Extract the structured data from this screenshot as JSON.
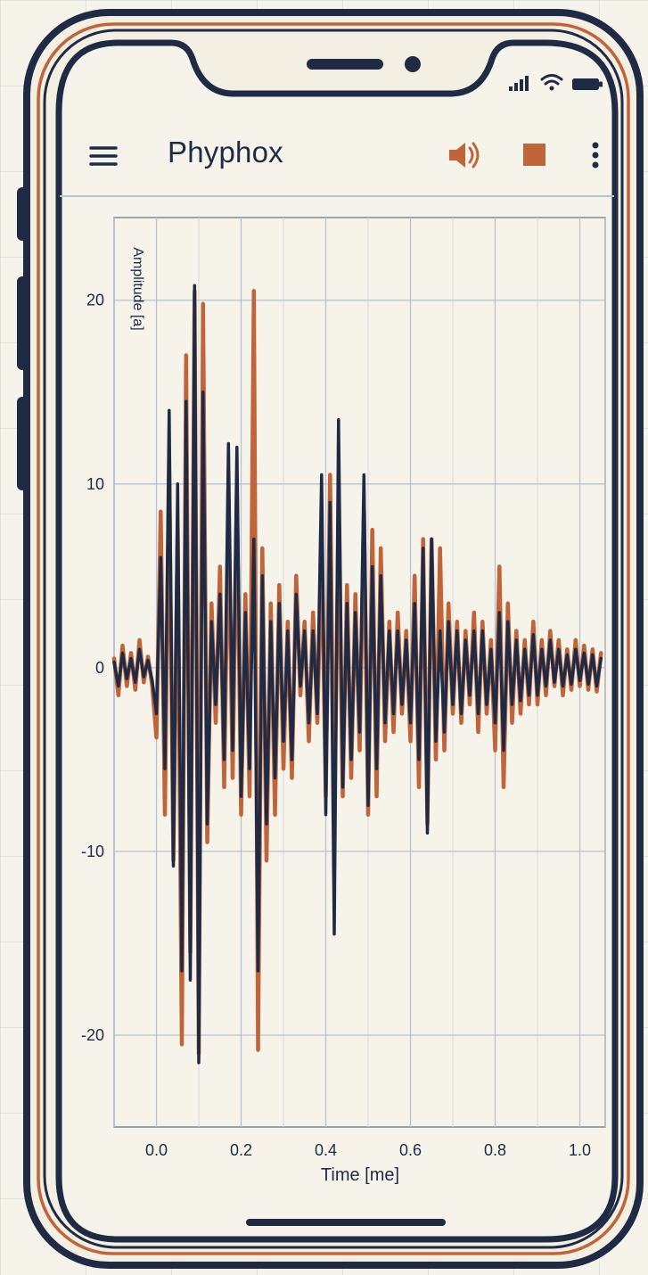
{
  "app": {
    "title": "Phyphox"
  },
  "toolbar": {
    "menu_icon": "hamburger-menu-icon",
    "sound_icon": "speaker-icon",
    "stop_icon": "stop-square-icon",
    "more_icon": "more-vertical-icon"
  },
  "status_bar": {
    "icons": [
      "signal-icon",
      "wifi-icon",
      "battery-icon"
    ]
  },
  "colors": {
    "frame": "#1f2a44",
    "accent": "#c0643a",
    "background": "#f6f3ea",
    "grid": "#b9c3cb"
  },
  "chart_data": {
    "type": "line",
    "title": "",
    "xlabel": "Time [me]",
    "ylabel": "Amplitude [a]",
    "xlim": [
      -0.1,
      1.06
    ],
    "ylim": [
      -25,
      24.5
    ],
    "x_ticks": [
      0.0,
      0.2,
      0.4,
      0.6,
      0.8,
      1.0
    ],
    "x_tick_labels": [
      "0.0",
      "0.2",
      "0.4",
      "0.6",
      "0.8",
      "1.0"
    ],
    "y_ticks": [
      20,
      10,
      0,
      -10,
      -20
    ],
    "y_tick_labels": [
      "20",
      "10",
      "0",
      "-10",
      "-20"
    ],
    "grid": true,
    "series": [
      {
        "color": "#c0643a",
        "x": [
          -0.1,
          -0.09,
          -0.08,
          -0.07,
          -0.06,
          -0.05,
          -0.04,
          -0.03,
          -0.02,
          -0.01,
          0.0,
          0.01,
          0.02,
          0.03,
          0.04,
          0.05,
          0.06,
          0.07,
          0.08,
          0.09,
          0.1,
          0.11,
          0.12,
          0.13,
          0.14,
          0.15,
          0.16,
          0.17,
          0.18,
          0.19,
          0.2,
          0.21,
          0.22,
          0.23,
          0.24,
          0.25,
          0.26,
          0.27,
          0.28,
          0.29,
          0.3,
          0.31,
          0.32,
          0.33,
          0.34,
          0.35,
          0.36,
          0.37,
          0.38,
          0.39,
          0.4,
          0.41,
          0.42,
          0.43,
          0.44,
          0.45,
          0.46,
          0.47,
          0.48,
          0.49,
          0.5,
          0.51,
          0.52,
          0.53,
          0.54,
          0.55,
          0.56,
          0.57,
          0.58,
          0.59,
          0.6,
          0.61,
          0.62,
          0.63,
          0.64,
          0.65,
          0.66,
          0.67,
          0.68,
          0.69,
          0.7,
          0.71,
          0.72,
          0.73,
          0.74,
          0.75,
          0.76,
          0.77,
          0.78,
          0.79,
          0.8,
          0.81,
          0.82,
          0.83,
          0.84,
          0.85,
          0.86,
          0.87,
          0.88,
          0.89,
          0.9,
          0.91,
          0.92,
          0.93,
          0.94,
          0.95,
          0.96,
          0.97,
          0.98,
          0.99,
          1.0,
          1.01,
          1.02,
          1.03,
          1.04,
          1.05
        ],
        "y": [
          0.5,
          -1.5,
          1.2,
          -1.0,
          0.8,
          -1.2,
          1.5,
          -0.8,
          0.6,
          -1.0,
          -3.8,
          8.5,
          -8.0,
          11.0,
          -10.5,
          7.5,
          -20.5,
          17.0,
          -15.5,
          20.5,
          -21.0,
          19.8,
          -9.5,
          3.5,
          -3.0,
          5.5,
          -6.5,
          8.5,
          -6.0,
          9.5,
          -8.0,
          4.0,
          -7.0,
          20.5,
          -20.8,
          6.5,
          -10.5,
          3.5,
          -8.0,
          4.5,
          -5.5,
          2.5,
          -6.0,
          5.0,
          -1.5,
          2.5,
          -4.0,
          3.0,
          -3.0,
          6.5,
          -7.0,
          10.5,
          -9.0,
          8.5,
          -7.0,
          4.5,
          -6.0,
          4.0,
          -4.5,
          8.5,
          -8.0,
          7.5,
          -7.0,
          6.5,
          -4.0,
          2.5,
          -3.5,
          3.0,
          -2.5,
          2.0,
          -4.0,
          5.0,
          -6.5,
          7.0,
          -8.5,
          7.0,
          -5.0,
          6.5,
          -4.5,
          3.5,
          -2.5,
          2.5,
          -3.0,
          2.0,
          -2.0,
          3.0,
          -3.5,
          2.5,
          -2.5,
          1.5,
          -4.5,
          5.5,
          -6.5,
          3.5,
          -3.0,
          2.0,
          -2.5,
          1.5,
          -2.0,
          2.5,
          -2.0,
          1.5,
          -1.5,
          2.0,
          -1.0,
          1.5,
          -1.5,
          1.0,
          -1.2,
          1.5,
          -1.0,
          1.2,
          -1.2,
          1.0,
          -1.3,
          0.8
        ]
      },
      {
        "color": "#1f2a44",
        "x": [
          -0.1,
          -0.09,
          -0.08,
          -0.07,
          -0.06,
          -0.05,
          -0.04,
          -0.03,
          -0.02,
          -0.01,
          0.0,
          0.01,
          0.02,
          0.03,
          0.04,
          0.05,
          0.06,
          0.07,
          0.08,
          0.09,
          0.1,
          0.11,
          0.12,
          0.13,
          0.14,
          0.15,
          0.16,
          0.17,
          0.18,
          0.19,
          0.2,
          0.21,
          0.22,
          0.23,
          0.24,
          0.25,
          0.26,
          0.27,
          0.28,
          0.29,
          0.3,
          0.31,
          0.32,
          0.33,
          0.34,
          0.35,
          0.36,
          0.37,
          0.38,
          0.39,
          0.4,
          0.41,
          0.42,
          0.43,
          0.44,
          0.45,
          0.46,
          0.47,
          0.48,
          0.49,
          0.5,
          0.51,
          0.52,
          0.53,
          0.54,
          0.55,
          0.56,
          0.57,
          0.58,
          0.59,
          0.6,
          0.61,
          0.62,
          0.63,
          0.64,
          0.65,
          0.66,
          0.67,
          0.68,
          0.69,
          0.7,
          0.71,
          0.72,
          0.73,
          0.74,
          0.75,
          0.76,
          0.77,
          0.78,
          0.79,
          0.8,
          0.81,
          0.82,
          0.83,
          0.84,
          0.85,
          0.86,
          0.87,
          0.88,
          0.89,
          0.9,
          0.91,
          0.92,
          0.93,
          0.94,
          0.95,
          0.96,
          0.97,
          0.98,
          0.99,
          1.0,
          1.01,
          1.02,
          1.03,
          1.04,
          1.05
        ],
        "y": [
          0.3,
          -1.0,
          0.8,
          -0.6,
          0.5,
          -0.8,
          1.0,
          -0.5,
          0.4,
          -0.7,
          -2.5,
          6.0,
          -5.5,
          14.0,
          -10.8,
          10.0,
          -16.5,
          14.5,
          -17.0,
          20.8,
          -21.5,
          15.0,
          -8.5,
          2.5,
          -2.0,
          4.0,
          -5.0,
          12.2,
          -4.5,
          12.0,
          -7.0,
          3.0,
          -5.5,
          7.0,
          -16.5,
          5.0,
          -8.5,
          2.5,
          -6.0,
          3.5,
          -4.0,
          2.0,
          -5.0,
          4.0,
          -1.0,
          2.0,
          -3.0,
          2.0,
          -2.5,
          10.5,
          -8.0,
          9.0,
          -14.5,
          13.5,
          -6.5,
          3.5,
          -5.0,
          3.0,
          -3.5,
          10.5,
          -7.5,
          5.5,
          -5.5,
          5.0,
          -3.0,
          2.0,
          -2.5,
          2.0,
          -2.0,
          1.5,
          -3.0,
          3.5,
          -5.0,
          6.5,
          -9.0,
          7.0,
          -4.0,
          2.0,
          -3.5,
          2.5,
          -2.0,
          2.0,
          -2.5,
          1.5,
          -1.5,
          2.0,
          -2.5,
          2.0,
          -2.0,
          1.0,
          -3.0,
          3.0,
          -4.5,
          2.5,
          -2.0,
          1.5,
          -1.8,
          1.0,
          -1.5,
          1.8,
          -1.5,
          1.0,
          -1.0,
          1.5,
          -0.8,
          1.0,
          -1.0,
          0.7,
          -0.9,
          1.0,
          -0.7,
          0.8,
          -0.9,
          0.7,
          -1.0,
          0.5
        ]
      }
    ]
  }
}
